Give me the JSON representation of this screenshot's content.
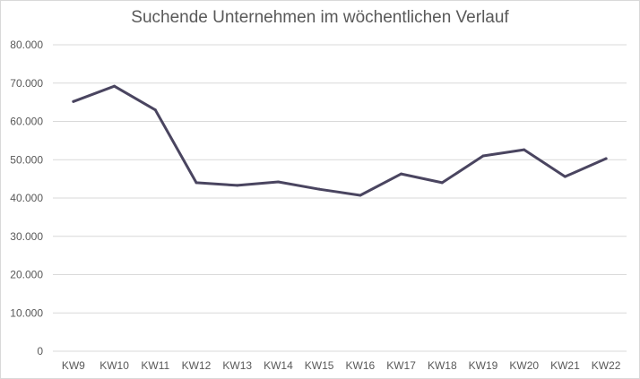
{
  "chart_data": {
    "type": "line",
    "title": "Suchende Unternehmen im wöchentlichen Verlauf",
    "xlabel": "",
    "ylabel": "",
    "categories": [
      "KW9",
      "KW10",
      "KW11",
      "KW12",
      "KW13",
      "KW14",
      "KW15",
      "KW16",
      "KW17",
      "KW18",
      "KW19",
      "KW20",
      "KW21",
      "KW22"
    ],
    "series": [
      {
        "values": [
          65200,
          69200,
          63000,
          44000,
          43300,
          44200,
          42300,
          40700,
          46300,
          44000,
          51000,
          52600,
          45600,
          50300
        ]
      }
    ],
    "ylim": [
      0,
      80000
    ],
    "yticks": [
      0,
      10000,
      20000,
      30000,
      40000,
      50000,
      60000,
      70000,
      80000
    ],
    "ytick_labels": [
      "0",
      "10.000",
      "20.000",
      "30.000",
      "40.000",
      "50.000",
      "60.000",
      "70.000",
      "80.000"
    ],
    "grid": true,
    "legend": "none",
    "colors": {
      "line": "#4a4560",
      "grid": "#d9d9d9",
      "text": "#595959"
    }
  }
}
